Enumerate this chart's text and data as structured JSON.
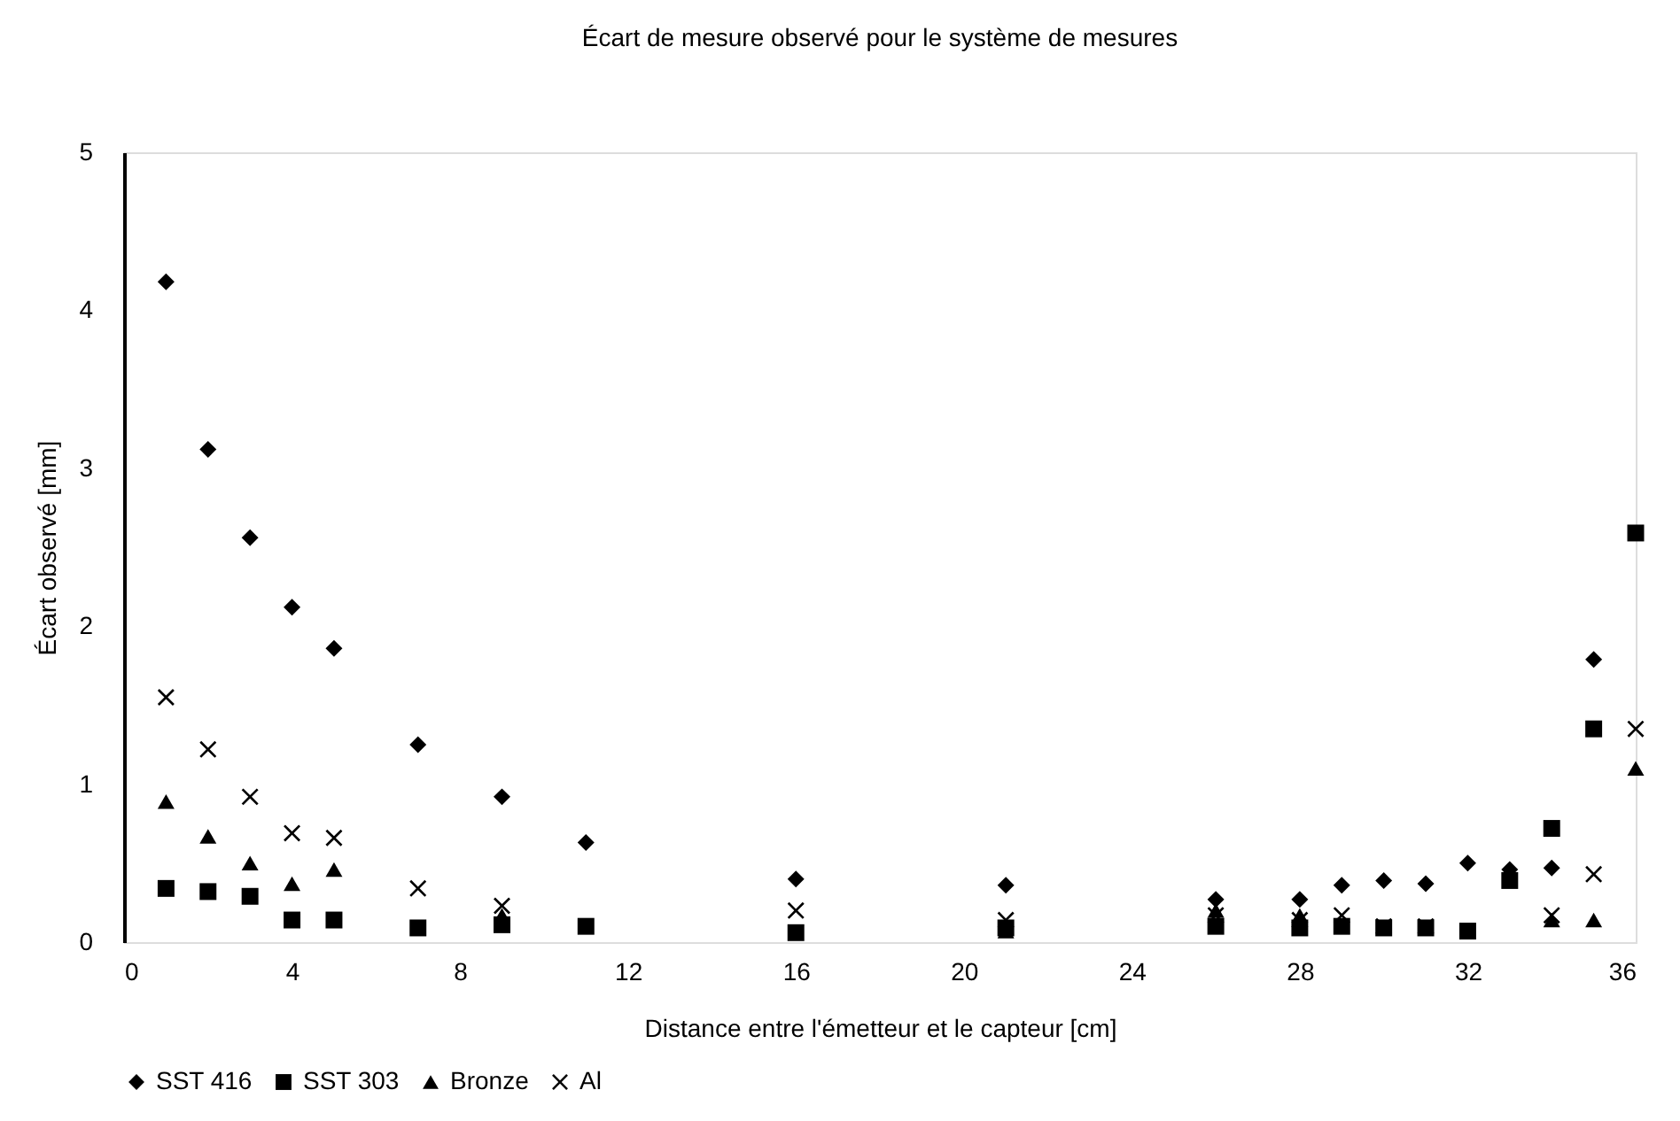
{
  "chart_data": {
    "type": "scatter",
    "title": "Écart de mesure observé pour le système de mesures",
    "xlabel": "Distance entre l'émetteur et le capteur [cm]",
    "ylabel": "Écart observé [mm]",
    "x": [
      1,
      2,
      3,
      4,
      5,
      7,
      9,
      11,
      16,
      21,
      26,
      28,
      29,
      30,
      31,
      32,
      33,
      34,
      35,
      36
    ],
    "series": [
      {
        "name": "SST 416",
        "color": "#000000",
        "marker": "diamond",
        "values": [
          4.18,
          3.12,
          2.56,
          2.12,
          1.86,
          1.25,
          0.92,
          0.63,
          0.4,
          0.36,
          0.27,
          0.27,
          0.36,
          0.39,
          0.37,
          0.5,
          0.46,
          0.47,
          1.79,
          null
        ]
      },
      {
        "name": "SST 303",
        "color": "#000000",
        "marker": "square",
        "values": [
          0.34,
          0.32,
          0.29,
          0.14,
          0.14,
          0.09,
          0.11,
          0.1,
          0.06,
          0.09,
          0.1,
          0.09,
          0.1,
          0.09,
          0.09,
          0.07,
          0.39,
          0.72,
          1.35,
          2.59
        ]
      },
      {
        "name": "Bronze",
        "color": "#000000",
        "marker": "triangle",
        "values": [
          0.89,
          0.67,
          0.5,
          0.37,
          0.46,
          null,
          0.17,
          null,
          null,
          0.07,
          0.2,
          0.17,
          null,
          null,
          null,
          null,
          null,
          0.14,
          0.14,
          1.1
        ]
      },
      {
        "name": "Al",
        "color": "#000000",
        "marker": "cross",
        "values": [
          1.55,
          1.22,
          0.92,
          0.69,
          0.66,
          0.34,
          0.23,
          null,
          0.2,
          0.14,
          0.17,
          0.14,
          0.17,
          0.1,
          0.1,
          null,
          null,
          0.17,
          0.43,
          1.35
        ]
      }
    ],
    "xlim": [
      0,
      36
    ],
    "xticks": [
      0,
      4,
      8,
      12,
      16,
      20,
      24,
      28,
      32,
      36
    ],
    "ylim": [
      0,
      5
    ],
    "yticks": [
      0,
      1,
      2,
      3,
      4,
      5
    ],
    "grid": false,
    "legend": "bottom"
  }
}
